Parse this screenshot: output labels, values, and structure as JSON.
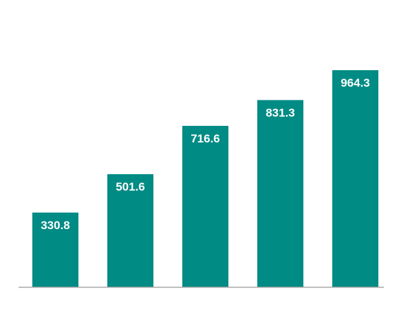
{
  "chart_data": {
    "type": "bar",
    "categories": [],
    "values": [
      330.8,
      501.6,
      716.6,
      831.3,
      964.3
    ],
    "labels": [
      "330.8",
      "501.6",
      "716.6",
      "831.3",
      "964.3"
    ],
    "title": "",
    "xlabel": "",
    "ylabel": "",
    "ylim": [
      0,
      1100
    ],
    "grid": false,
    "legend": "none",
    "colors": {
      "bar": "#008B84",
      "axis": "#A6A6A6",
      "label": "#FFFFFF"
    }
  }
}
